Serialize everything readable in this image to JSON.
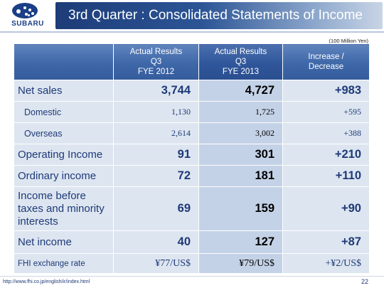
{
  "header": {
    "logo_text": "SUBARU",
    "title": "3rd Quarter : Consolidated Statements of Income"
  },
  "unit": "(100 Million Yen)",
  "table": {
    "columns": [
      {
        "line1": "Actual Results",
        "line2": "Q3",
        "line3": "FYE 2012"
      },
      {
        "line1": "Actual Results",
        "line2": "Q3",
        "line3": "FYE 2013"
      },
      {
        "line1": "Increase /",
        "line2": "Decrease",
        "line3": ""
      }
    ],
    "rows": [
      {
        "label": "Net sales",
        "v1": "3,744",
        "v2": "4,727",
        "v3": "+983"
      },
      {
        "label": "Domestic",
        "v1": "1,130",
        "v2": "1,725",
        "v3": "+595"
      },
      {
        "label": "Overseas",
        "v1": "2,614",
        "v2": "3,002",
        "v3": "+388"
      },
      {
        "label": "Operating Income",
        "v1": "91",
        "v2": "301",
        "v3": "+210"
      },
      {
        "label": "Ordinary income",
        "v1": "72",
        "v2": "181",
        "v3": "+110"
      },
      {
        "label_line1": "Income before",
        "label_line2": "taxes and minority",
        "label_line3": "interests",
        "v1": "69",
        "v2": "159",
        "v3": "+90"
      },
      {
        "label": "Net income",
        "v1": "40",
        "v2": "127",
        "v3": "+87"
      },
      {
        "label": "FHI exchange rate",
        "v1": "¥77/US$",
        "v2": "¥79/US$",
        "v3": "+¥2/US$"
      }
    ]
  },
  "footer": {
    "url": "http://www.fhi.co.jp/english/ir/index.html",
    "page": "22"
  }
}
